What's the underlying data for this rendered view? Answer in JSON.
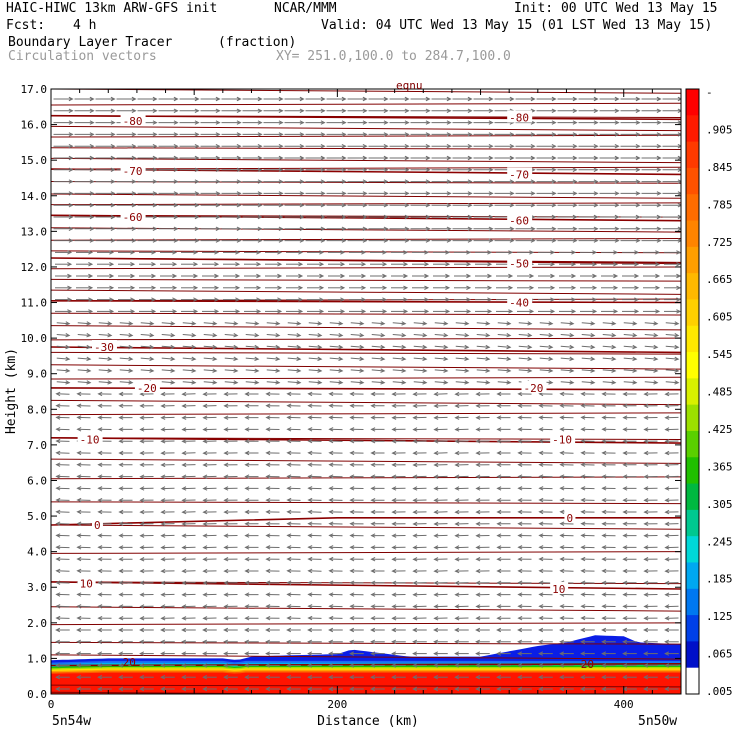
{
  "header": {
    "model": "HAIC-HIWC 13km ARW-GFS init",
    "org": "NCAR/MMM",
    "init": "Init: 00 UTC Wed 13 May 15",
    "fcst_label": "Fcst:",
    "fcst_value": "4 h",
    "valid": "Valid: 04 UTC Wed 13 May 15 (01 LST Wed 13 May 15)",
    "field_name": "Boundary Layer Tracer",
    "field_units": "(fraction)",
    "vectors_label": "Circulation vectors",
    "xy_label": "XY= 251.0,100.0 to 284.7,100.0"
  },
  "chart_data": {
    "type": "heatmap",
    "xlabel": "Distance (km)",
    "ylabel": "Height (km)",
    "xlim": [
      0,
      440
    ],
    "ylim": [
      0,
      17
    ],
    "x_ticks": [
      "0",
      "200",
      "400"
    ],
    "x_tick_values": [
      0,
      200,
      400
    ],
    "y_ticks": [
      "0.0",
      "1.0",
      "2.0",
      "3.0",
      "4.0",
      "5.0",
      "6.0",
      "7.0",
      "8.0",
      "9.0",
      "10.0",
      "11.0",
      "12.0",
      "13.0",
      "14.0",
      "15.0",
      "16.0",
      "17.0"
    ],
    "y_tick_values": [
      0,
      1,
      2,
      3,
      4,
      5,
      6,
      7,
      8,
      9,
      10,
      11,
      12,
      13,
      14,
      15,
      16,
      17
    ],
    "x_end_labels": {
      "left": "5n54w",
      "right": "5n50w"
    },
    "top_label": "eqnu",
    "colorbar": {
      "labels": [
        "-",
        ".905",
        ".845",
        ".785",
        ".725",
        ".665",
        ".605",
        ".545",
        ".485",
        ".425",
        ".365",
        ".305",
        ".245",
        ".185",
        ".125",
        ".065",
        ".005"
      ],
      "colors": [
        "#ff0000",
        "#ff1a00",
        "#ff3a00",
        "#ff5200",
        "#ff6c00",
        "#ff8400",
        "#ff9e00",
        "#ffb800",
        "#ffd000",
        "#ffe800",
        "#ffff00",
        "#d8f000",
        "#9ce000",
        "#5ad000",
        "#20c000",
        "#00b840",
        "#00c890",
        "#00d8d8",
        "#00a8f0",
        "#0078f0",
        "#0040e8",
        "#0010c8",
        "#ffffff"
      ]
    },
    "tracer_top_km": [
      [
        0,
        0.95
      ],
      [
        40,
        1.0
      ],
      [
        80,
        1.0
      ],
      [
        120,
        1.0
      ],
      [
        130,
        0.95
      ],
      [
        140,
        1.05
      ],
      [
        160,
        1.08
      ],
      [
        200,
        1.12
      ],
      [
        210,
        1.25
      ],
      [
        230,
        1.15
      ],
      [
        250,
        1.05
      ],
      [
        300,
        1.05
      ],
      [
        320,
        1.2
      ],
      [
        340,
        1.35
      ],
      [
        360,
        1.45
      ],
      [
        380,
        1.65
      ],
      [
        400,
        1.62
      ],
      [
        410,
        1.45
      ],
      [
        440,
        1.4
      ]
    ],
    "temperature_contours": [
      {
        "label": "-80",
        "points": [
          [
            0,
            16.25
          ],
          [
            440,
            16.15
          ]
        ],
        "label_pos": [
          [
            50,
            16.1
          ],
          [
            320,
            16.2
          ]
        ]
      },
      {
        "label": "-70",
        "points": [
          [
            0,
            14.75
          ],
          [
            440,
            14.6
          ]
        ],
        "label_pos": [
          [
            50,
            14.7
          ],
          [
            320,
            14.6
          ]
        ]
      },
      {
        "label": "-60",
        "points": [
          [
            0,
            13.45
          ],
          [
            440,
            13.3
          ]
        ],
        "label_pos": [
          [
            50,
            13.4
          ],
          [
            320,
            13.3
          ]
        ]
      },
      {
        "label": "-50",
        "points": [
          [
            0,
            12.25
          ],
          [
            440,
            12.1
          ]
        ],
        "label_pos": [
          [
            320,
            12.1
          ]
        ]
      },
      {
        "label": "-40",
        "points": [
          [
            0,
            11.05
          ],
          [
            440,
            11.0
          ]
        ],
        "label_pos": [
          [
            320,
            11.0
          ]
        ]
      },
      {
        "label": "-30",
        "points": [
          [
            0,
            9.75
          ],
          [
            440,
            9.6
          ]
        ],
        "label_pos": [
          [
            30,
            9.75
          ]
        ]
      },
      {
        "label": "-20",
        "points": [
          [
            0,
            8.6
          ],
          [
            440,
            8.55
          ]
        ],
        "label_pos": [
          [
            60,
            8.6
          ],
          [
            330,
            8.6
          ]
        ]
      },
      {
        "label": "-10",
        "points": [
          [
            0,
            7.2
          ],
          [
            440,
            7.05
          ]
        ],
        "label_pos": [
          [
            20,
            7.15
          ],
          [
            350,
            7.15
          ]
        ]
      },
      {
        "label": "0",
        "points": [
          [
            0,
            4.75
          ],
          [
            200,
            4.95
          ],
          [
            440,
            4.95
          ]
        ],
        "label_pos": [
          [
            30,
            4.75
          ],
          [
            360,
            4.95
          ]
        ]
      },
      {
        "label": "10",
        "points": [
          [
            0,
            3.15
          ],
          [
            440,
            2.95
          ]
        ],
        "label_pos": [
          [
            20,
            3.1
          ],
          [
            350,
            2.95
          ]
        ]
      },
      {
        "label": "20",
        "points": [
          [
            0,
            0.8
          ],
          [
            440,
            0.85
          ]
        ],
        "label_pos": [
          [
            50,
            0.9
          ],
          [
            370,
            0.85
          ]
        ]
      }
    ],
    "isolines": [
      17.0,
      16.55,
      16.25,
      15.95,
      15.65,
      15.35,
      15.05,
      14.75,
      14.4,
      14.05,
      13.75,
      13.45,
      13.1,
      12.75,
      12.45,
      12.25,
      11.95,
      11.65,
      11.35,
      11.05,
      10.7,
      10.35,
      9.95,
      9.6,
      9.25,
      8.85,
      8.6,
      8.25,
      7.85,
      7.2,
      6.6,
      6.05,
      5.4,
      4.75,
      3.95,
      3.15,
      2.45,
      1.95,
      1.45,
      1.1,
      0.8,
      0.25,
      0.05
    ]
  }
}
